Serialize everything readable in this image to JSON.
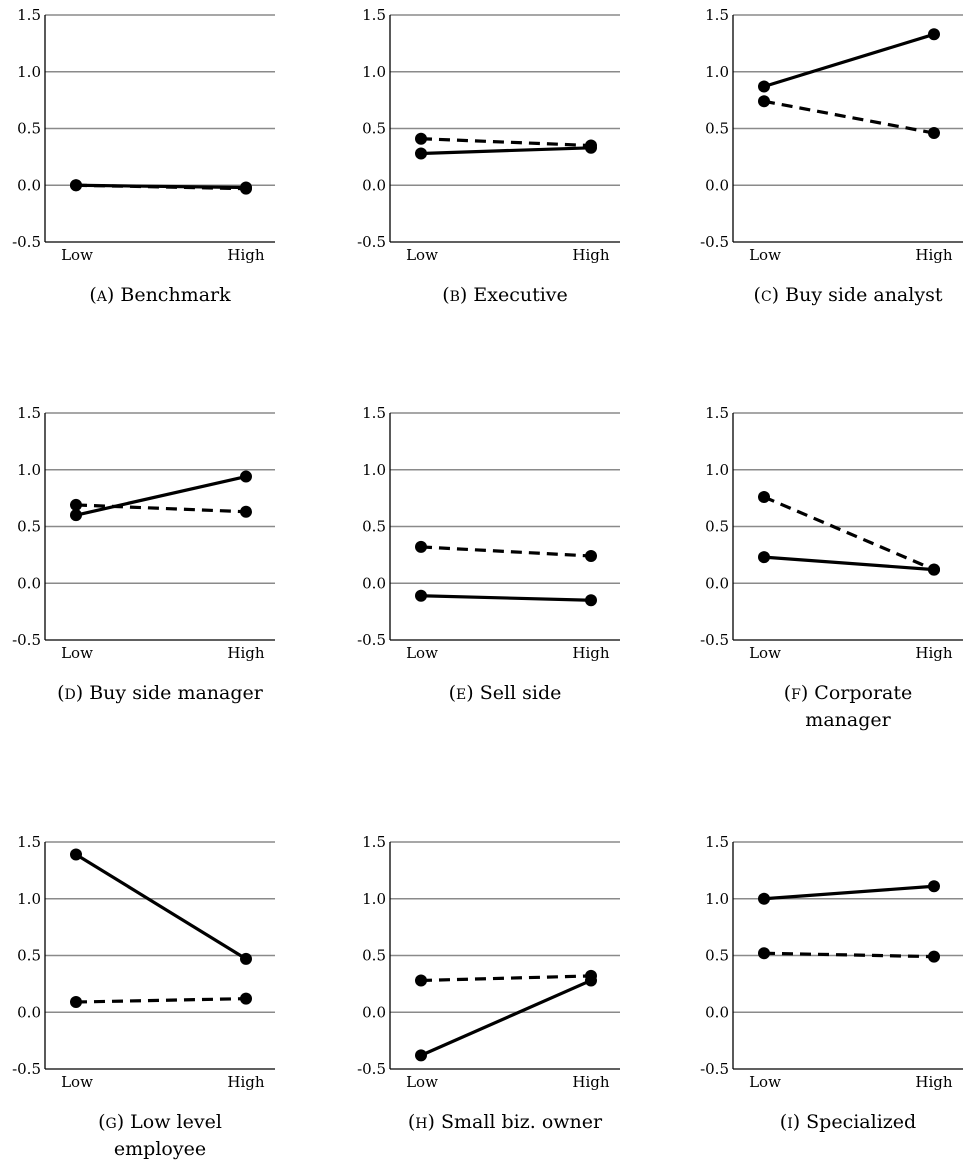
{
  "chart_data": [
    {
      "type": "line",
      "caption_prefix": "A",
      "caption": [
        "Benchmark"
      ],
      "categories": [
        "Low",
        "High"
      ],
      "ylim": [
        -0.5,
        1.5
      ],
      "yticks": [
        "1.5",
        "1.0",
        "0.5",
        "0.0",
        "-0.5"
      ],
      "series": [
        {
          "style": "solid",
          "values": [
            0.0,
            -0.02
          ]
        },
        {
          "style": "dashed",
          "values": [
            0.0,
            -0.03
          ]
        }
      ]
    },
    {
      "type": "line",
      "caption_prefix": "B",
      "caption": [
        "Executive"
      ],
      "categories": [
        "Low",
        "High"
      ],
      "ylim": [
        -0.5,
        1.5
      ],
      "yticks": [
        "1.5",
        "1.0",
        "0.5",
        "0.0",
        "-0.5"
      ],
      "series": [
        {
          "style": "solid",
          "values": [
            0.28,
            0.33
          ]
        },
        {
          "style": "dashed",
          "values": [
            0.41,
            0.35
          ]
        }
      ]
    },
    {
      "type": "line",
      "caption_prefix": "C",
      "caption": [
        "Buy side analyst"
      ],
      "categories": [
        "Low",
        "High"
      ],
      "ylim": [
        -0.5,
        1.5
      ],
      "yticks": [
        "1.5",
        "1.0",
        "0.5",
        "0.0",
        "-0.5"
      ],
      "series": [
        {
          "style": "solid",
          "values": [
            0.87,
            1.33
          ]
        },
        {
          "style": "dashed",
          "values": [
            0.74,
            0.46
          ]
        }
      ]
    },
    {
      "type": "line",
      "caption_prefix": "D",
      "caption": [
        "Buy side manager"
      ],
      "categories": [
        "Low",
        "High"
      ],
      "ylim": [
        -0.5,
        1.5
      ],
      "yticks": [
        "1.5",
        "1.0",
        "0.5",
        "0.0",
        "-0.5"
      ],
      "series": [
        {
          "style": "solid",
          "values": [
            0.6,
            0.94
          ]
        },
        {
          "style": "dashed",
          "values": [
            0.69,
            0.63
          ]
        }
      ]
    },
    {
      "type": "line",
      "caption_prefix": "E",
      "caption": [
        "Sell side"
      ],
      "categories": [
        "Low",
        "High"
      ],
      "ylim": [
        -0.5,
        1.5
      ],
      "yticks": [
        "1.5",
        "1.0",
        "0.5",
        "0.0",
        "-0.5"
      ],
      "series": [
        {
          "style": "solid",
          "values": [
            -0.11,
            -0.15
          ]
        },
        {
          "style": "dashed",
          "values": [
            0.32,
            0.24
          ]
        }
      ]
    },
    {
      "type": "line",
      "caption_prefix": "F",
      "caption": [
        "Corporate",
        "manager"
      ],
      "categories": [
        "Low",
        "High"
      ],
      "ylim": [
        -0.5,
        1.5
      ],
      "yticks": [
        "1.5",
        "1.0",
        "0.5",
        "0.0",
        "-0.5"
      ],
      "series": [
        {
          "style": "solid",
          "values": [
            0.23,
            0.12
          ]
        },
        {
          "style": "dashed",
          "values": [
            0.76,
            0.12
          ]
        }
      ]
    },
    {
      "type": "line",
      "caption_prefix": "G",
      "caption": [
        "Low level",
        "employee"
      ],
      "categories": [
        "Low",
        "High"
      ],
      "ylim": [
        -0.5,
        1.5
      ],
      "yticks": [
        "1.5",
        "1.0",
        "0.5",
        "0.0",
        "-0.5"
      ],
      "series": [
        {
          "style": "solid",
          "values": [
            1.39,
            0.47
          ]
        },
        {
          "style": "dashed",
          "values": [
            0.09,
            0.12
          ]
        }
      ]
    },
    {
      "type": "line",
      "caption_prefix": "H",
      "caption": [
        "Small biz. owner"
      ],
      "categories": [
        "Low",
        "High"
      ],
      "ylim": [
        -0.5,
        1.5
      ],
      "yticks": [
        "1.5",
        "1.0",
        "0.5",
        "0.0",
        "-0.5"
      ],
      "series": [
        {
          "style": "solid",
          "values": [
            -0.38,
            0.28
          ]
        },
        {
          "style": "dashed",
          "values": [
            0.28,
            0.32
          ]
        }
      ]
    },
    {
      "type": "line",
      "caption_prefix": "I",
      "caption": [
        "Specialized"
      ],
      "categories": [
        "Low",
        "High"
      ],
      "ylim": [
        -0.5,
        1.5
      ],
      "yticks": [
        "1.5",
        "1.0",
        "0.5",
        "0.0",
        "-0.5"
      ],
      "series": [
        {
          "style": "solid",
          "values": [
            1.0,
            1.11
          ]
        },
        {
          "style": "dashed",
          "values": [
            0.52,
            0.49
          ]
        }
      ]
    }
  ],
  "colors": {
    "grid": "#8a8a8a",
    "line": "#000000"
  }
}
